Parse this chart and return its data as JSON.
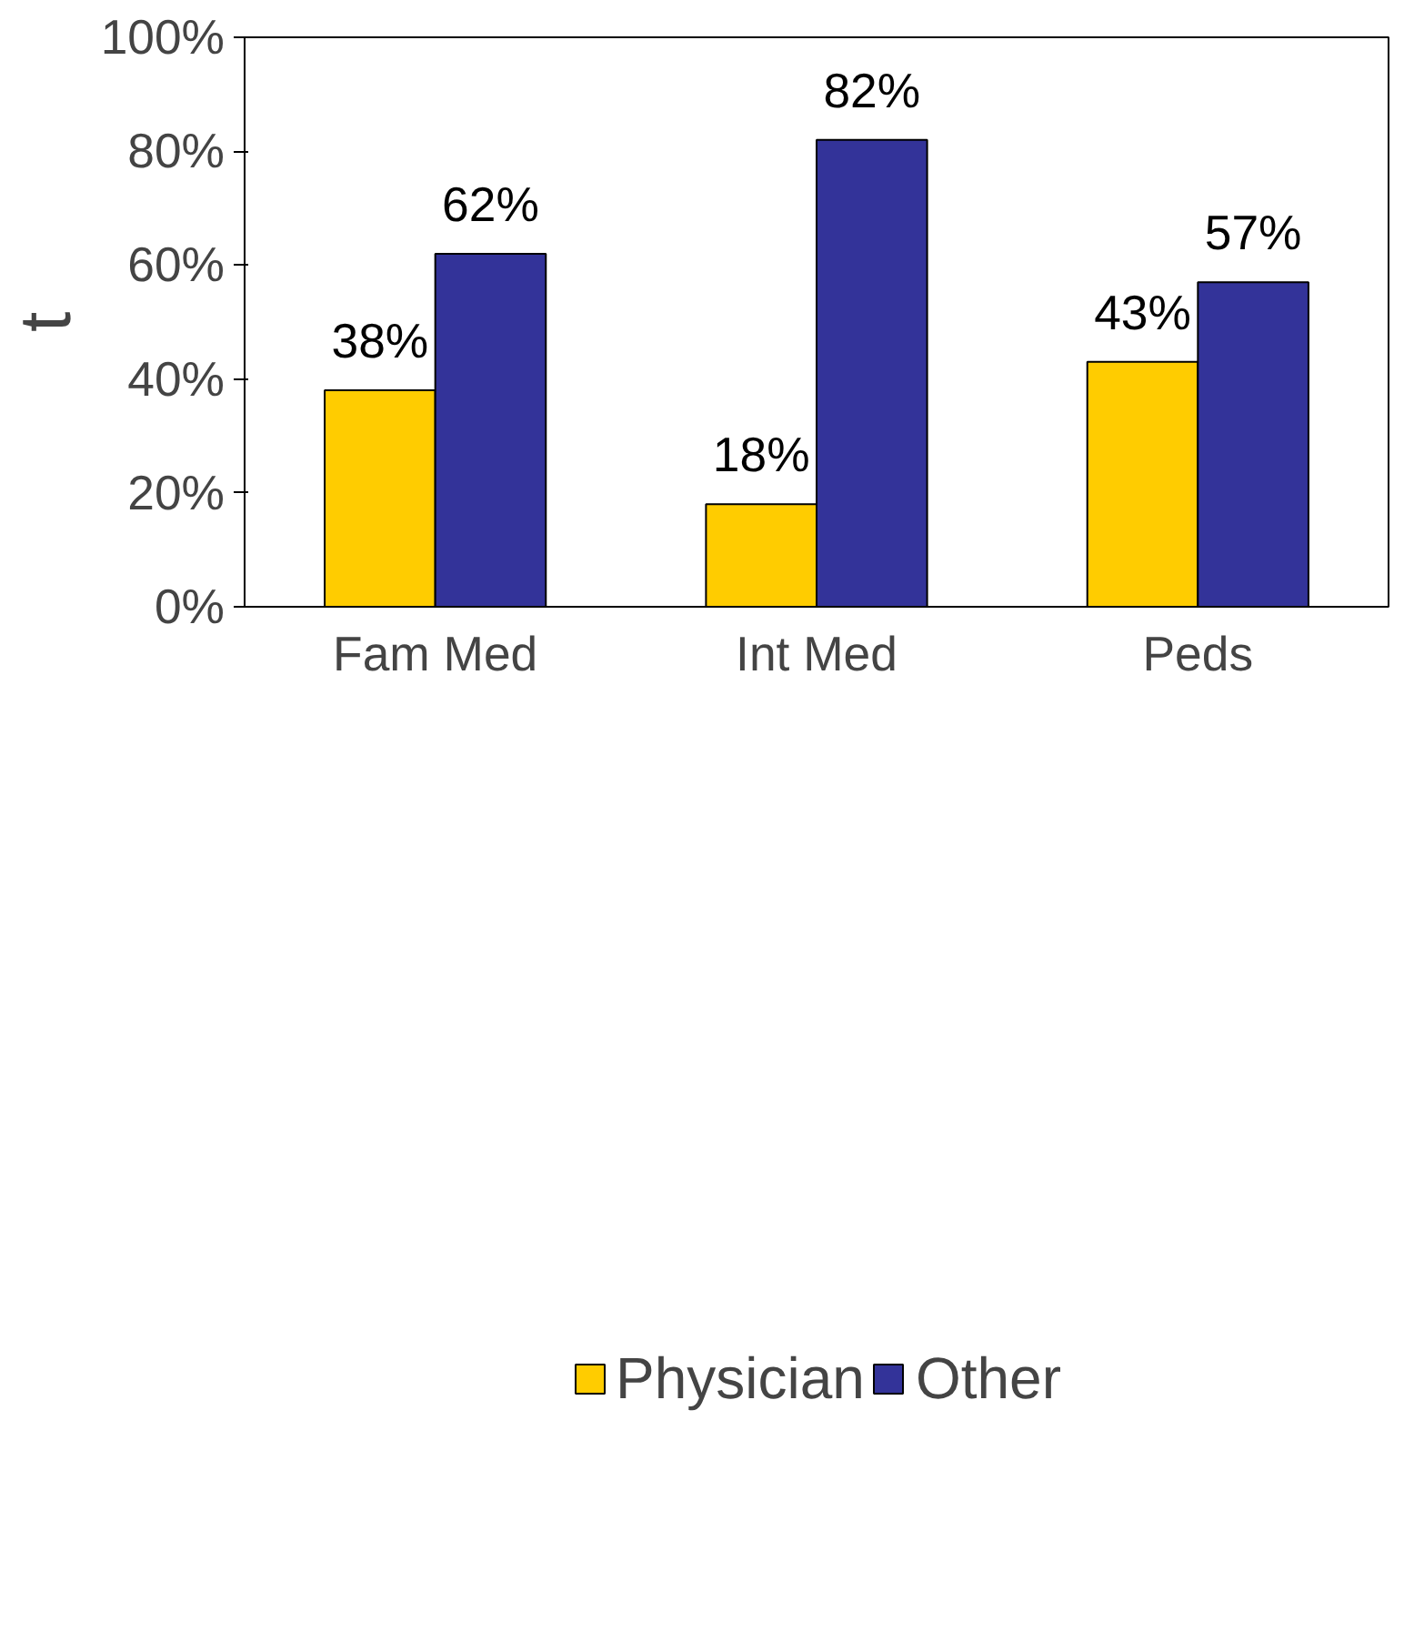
{
  "chart_data": {
    "type": "bar",
    "ylabel": "t",
    "categories": [
      "Fam Med",
      "Int Med",
      "Peds"
    ],
    "series": [
      {
        "name": "Physician",
        "color": "#ffcc00",
        "values": [
          38,
          18,
          43
        ],
        "value_labels": [
          "38%",
          "18%",
          "43%"
        ]
      },
      {
        "name": "Other",
        "color": "#333399",
        "values": [
          62,
          82,
          57
        ],
        "value_labels": [
          "62%",
          "82%",
          "57%"
        ]
      }
    ],
    "ylim": [
      0,
      100
    ],
    "yticks": [
      {
        "value": 0,
        "label": "0%"
      },
      {
        "value": 20,
        "label": "20%"
      },
      {
        "value": 40,
        "label": "40%"
      },
      {
        "value": 60,
        "label": "60%"
      },
      {
        "value": 80,
        "label": "80%"
      },
      {
        "value": 100,
        "label": "100%"
      }
    ],
    "grid": false,
    "legend": "bottom"
  }
}
